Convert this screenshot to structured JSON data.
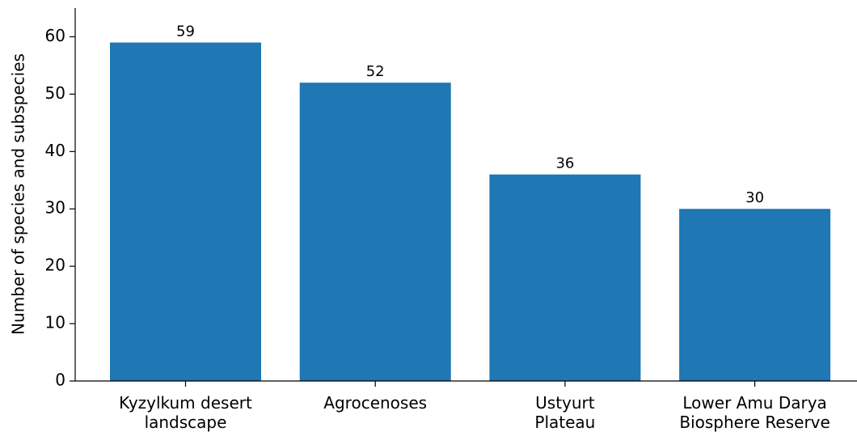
{
  "chart_data": {
    "type": "bar",
    "y_label": "Number of species and subspecies",
    "categories": [
      "Kyzylkum desert\nlandscape",
      "Agrocenoses",
      "Ustyurt\nPlateau",
      "Lower Amu Darya\nBiosphere Reserve"
    ],
    "values": [
      59,
      52,
      36,
      30
    ],
    "color": "#1f77b4",
    "ylim": [
      0,
      65
    ],
    "yticks": [
      0,
      10,
      20,
      30,
      40,
      50,
      60
    ],
    "grid": false
  }
}
